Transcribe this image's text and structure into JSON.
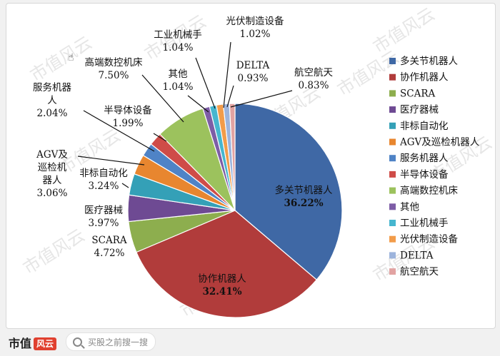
{
  "chart_data": {
    "type": "pie",
    "series": [
      {
        "values": [
          36.22,
          32.41,
          4.72,
          3.97,
          3.24,
          3.06,
          2.04,
          1.99,
          7.5,
          1.04,
          1.04,
          1.02,
          0.93,
          0.83
        ]
      }
    ],
    "categories": [
      "多关节机器人",
      "协作机器人",
      "SCARA",
      "医疗器械",
      "非标自动化",
      "AGV及巡检机器人",
      "服务机器人",
      "半导体设备",
      "高端数控机床",
      "其他",
      "工业机械手",
      "光伏制造设备",
      "DELTA",
      "航空航天"
    ],
    "slice_labels": [
      {
        "name": "多关节机器人",
        "pct": "36.22%"
      },
      {
        "name": "协作机器人",
        "pct": "32.41%"
      },
      {
        "name": "SCARA",
        "pct": "4.72%"
      },
      {
        "name": "医疗器械",
        "pct": "3.97%"
      },
      {
        "name": "非标自动化",
        "pct": "3.24%"
      },
      {
        "name": "AGV及巡检机器人",
        "pct": "3.06%"
      },
      {
        "name": "服务机器人",
        "pct": "2.04%"
      },
      {
        "name": "半导体设备",
        "pct": "1.99%"
      },
      {
        "name": "高端数控机床",
        "pct": "7.50%"
      },
      {
        "name": "其他",
        "pct": "1.04%"
      },
      {
        "name": "工业机械手",
        "pct": "1.04%"
      },
      {
        "name": "光伏制造设备",
        "pct": "1.02%"
      },
      {
        "name": "DELTA",
        "pct": "0.93%"
      },
      {
        "name": "航空航天",
        "pct": "0.83%"
      }
    ],
    "colors": [
      "#3f68a5",
      "#b13c3b",
      "#8dae4e",
      "#6e4a93",
      "#34a0b7",
      "#e8862f",
      "#4f83c6",
      "#cf4c48",
      "#9cc25d",
      "#7d5da6",
      "#46b6cf",
      "#f29c4a",
      "#9db4dc",
      "#e2a3a2"
    ],
    "legend_position": "right",
    "title": ""
  },
  "watermark": "市值风云",
  "bottom_bar": {
    "brand": "市值",
    "brand_mark": "风云",
    "search_placeholder": "买股之前搜一搜"
  }
}
